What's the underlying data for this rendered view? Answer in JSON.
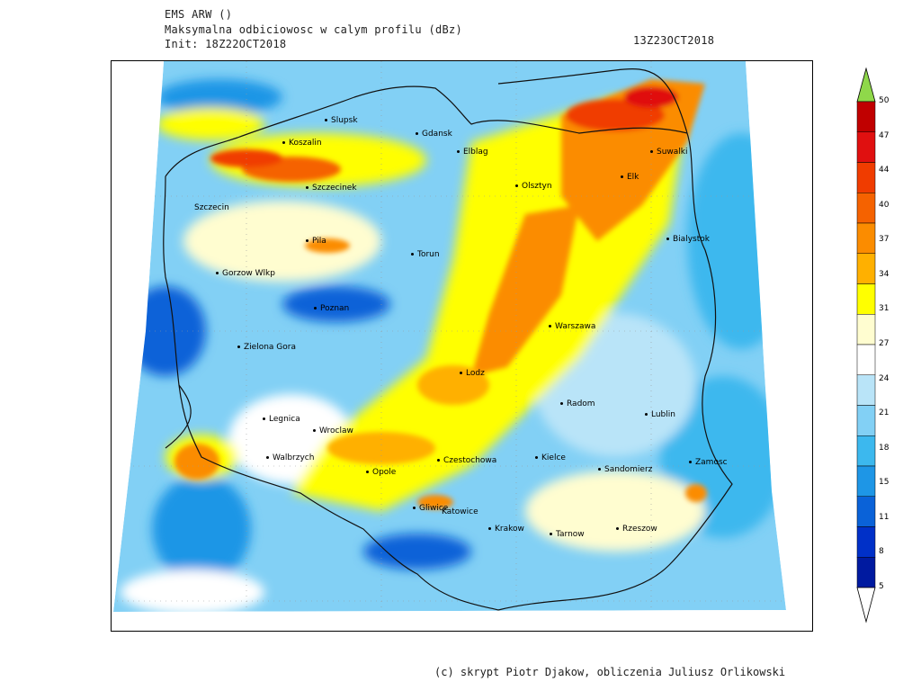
{
  "header": {
    "model": "EMS ARW ()",
    "field": "Maksymalna odbiciowosc w calym profilu (dBz)",
    "init": "Init: 18Z22OCT2018",
    "valid": "13Z23OCT2018"
  },
  "legend": {
    "levels": [
      "50",
      "47",
      "44",
      "40",
      "37",
      "34",
      "31",
      "27",
      "24",
      "21",
      "18",
      "15",
      "11",
      "8",
      "5"
    ],
    "colors": [
      "#8fd84a",
      "#c00000",
      "#e01010",
      "#f03c00",
      "#f56200",
      "#fb8c00",
      "#ffb000",
      "#ffff00",
      "#fffdd0",
      "#ffffff",
      "#b9e4f8",
      "#82d0f5",
      "#3cb8ee",
      "#1e96e6",
      "#0a62d8",
      "#0030c8",
      "#001aa0",
      "#ffffff"
    ]
  },
  "cities": [
    {
      "name": "Slupsk"
    },
    {
      "name": "Gdansk"
    },
    {
      "name": "Koszalin"
    },
    {
      "name": "Elblag"
    },
    {
      "name": "Suwalki"
    },
    {
      "name": "Szczecinek"
    },
    {
      "name": "Olsztyn"
    },
    {
      "name": "Elk"
    },
    {
      "name": "Szczecin"
    },
    {
      "name": "Pila"
    },
    {
      "name": "Bialystok"
    },
    {
      "name": "Torun"
    },
    {
      "name": "Gorzow Wlkp"
    },
    {
      "name": "Poznan"
    },
    {
      "name": "Warszawa"
    },
    {
      "name": "Zielona Gora"
    },
    {
      "name": "Lodz"
    },
    {
      "name": "Radom"
    },
    {
      "name": "Legnica"
    },
    {
      "name": "Lublin"
    },
    {
      "name": "Wroclaw"
    },
    {
      "name": "Walbrzych"
    },
    {
      "name": "Czestochowa"
    },
    {
      "name": "Kielce"
    },
    {
      "name": "Opole"
    },
    {
      "name": "Sandomierz"
    },
    {
      "name": "Zamosc"
    },
    {
      "name": "Gliwice"
    },
    {
      "name": "Katowice"
    },
    {
      "name": "Krakow"
    },
    {
      "name": "Tarnow"
    },
    {
      "name": "Rzeszow"
    }
  ],
  "credit": "(c) skrypt Piotr Djakow, obliczenia Juliusz Orlikowski"
}
